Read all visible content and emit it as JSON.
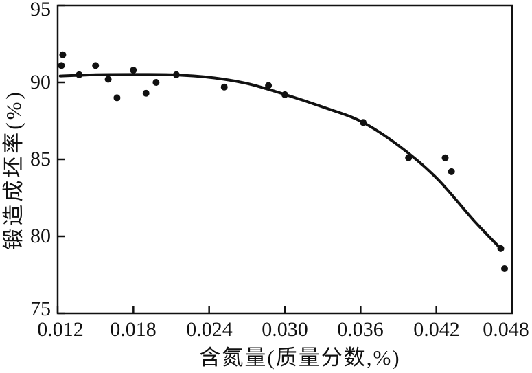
{
  "chart_data": {
    "type": "scatter",
    "title": "",
    "xlabel": "含氮量(质量分数,%)",
    "ylabel": "锻造成坯率(%)",
    "xlim": [
      0.012,
      0.048
    ],
    "ylim": [
      75,
      95
    ],
    "x_ticks": [
      0.012,
      0.018,
      0.024,
      0.03,
      0.036,
      0.042,
      0.048
    ],
    "x_tick_labels": [
      "0.012",
      "0.018",
      "0.024",
      "0.030",
      "0.036",
      "0.042",
      "0.048"
    ],
    "y_ticks": [
      95,
      90,
      85,
      80,
      75
    ],
    "y_tick_labels": [
      "95",
      "90",
      "85",
      "80",
      "75"
    ],
    "grid": false,
    "legend": "none",
    "ink_color": "#111111",
    "background_color": "#ffffff",
    "series": [
      {
        "name": "measured-points",
        "type": "scatter",
        "points": [
          [
            0.0124,
            91.8
          ],
          [
            0.0123,
            91.1
          ],
          [
            0.0137,
            90.5
          ],
          [
            0.015,
            91.1
          ],
          [
            0.016,
            90.2
          ],
          [
            0.0167,
            89.0
          ],
          [
            0.018,
            90.8
          ],
          [
            0.019,
            89.3
          ],
          [
            0.0198,
            90.0
          ],
          [
            0.0214,
            90.5
          ],
          [
            0.0252,
            89.7
          ],
          [
            0.0287,
            89.8
          ],
          [
            0.03,
            89.2
          ],
          [
            0.0362,
            87.4
          ],
          [
            0.0398,
            85.1
          ],
          [
            0.0427,
            85.1
          ],
          [
            0.0432,
            84.2
          ],
          [
            0.0471,
            79.2
          ],
          [
            0.0474,
            77.9
          ]
        ]
      },
      {
        "name": "fitted-curve",
        "type": "line",
        "points": [
          [
            0.0122,
            90.42
          ],
          [
            0.015,
            90.5
          ],
          [
            0.018,
            90.52
          ],
          [
            0.021,
            90.5
          ],
          [
            0.024,
            90.33
          ],
          [
            0.027,
            89.93
          ],
          [
            0.03,
            89.22
          ],
          [
            0.033,
            88.4
          ],
          [
            0.036,
            87.48
          ],
          [
            0.039,
            85.9
          ],
          [
            0.042,
            83.8
          ],
          [
            0.045,
            81.0
          ],
          [
            0.0471,
            79.2
          ]
        ]
      }
    ]
  }
}
